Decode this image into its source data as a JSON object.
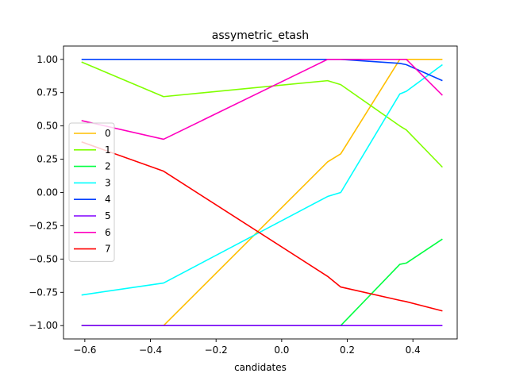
{
  "chart_data": {
    "type": "line",
    "title": "assymetric_etash",
    "xlabel": "candidates",
    "ylabel": "",
    "xlim": [
      -0.665,
      0.535
    ],
    "ylim": [
      -1.1,
      1.1
    ],
    "xticks": [
      -0.6,
      -0.4,
      -0.2,
      0.0,
      0.2,
      0.4
    ],
    "xtick_labels": [
      "−0.6",
      "−0.4",
      "−0.2",
      "0.0",
      "0.2",
      "0.4"
    ],
    "yticks": [
      -1.0,
      -0.75,
      -0.5,
      -0.25,
      0.0,
      0.25,
      0.5,
      0.75,
      1.0
    ],
    "ytick_labels": [
      "−1.00",
      "−0.75",
      "−0.50",
      "−0.25",
      "0.00",
      "0.25",
      "0.50",
      "0.75",
      "1.00"
    ],
    "grid": false,
    "legend_position": "center-left",
    "series": [
      {
        "name": "0",
        "color": "#ffbf00",
        "x": [
          -0.61,
          -0.36,
          0.14,
          0.18,
          0.36,
          0.38,
          0.49
        ],
        "y": [
          -1.0,
          -1.0,
          0.23,
          0.29,
          1.0,
          1.0,
          1.0
        ]
      },
      {
        "name": "1",
        "color": "#80ff00",
        "x": [
          -0.61,
          -0.36,
          0.14,
          0.18,
          0.36,
          0.38,
          0.49
        ],
        "y": [
          0.98,
          0.72,
          0.84,
          0.81,
          0.5,
          0.47,
          0.19
        ]
      },
      {
        "name": "2",
        "color": "#00ff40",
        "x": [
          -0.61,
          -0.36,
          0.14,
          0.18,
          0.36,
          0.38,
          0.49
        ],
        "y": [
          -1.0,
          -1.0,
          -1.0,
          -1.0,
          -0.54,
          -0.53,
          -0.35
        ]
      },
      {
        "name": "3",
        "color": "#00ffff",
        "x": [
          -0.61,
          -0.36,
          0.14,
          0.18,
          0.36,
          0.38,
          0.49
        ],
        "y": [
          -0.77,
          -0.68,
          -0.03,
          0.0,
          0.74,
          0.76,
          0.96
        ]
      },
      {
        "name": "4",
        "color": "#0040ff",
        "x": [
          -0.61,
          -0.36,
          0.14,
          0.18,
          0.36,
          0.38,
          0.49
        ],
        "y": [
          1.0,
          1.0,
          1.0,
          1.0,
          0.97,
          0.96,
          0.84
        ]
      },
      {
        "name": "5",
        "color": "#8000ff",
        "x": [
          -0.61,
          -0.36,
          0.14,
          0.18,
          0.36,
          0.38,
          0.49
        ],
        "y": [
          -1.0,
          -1.0,
          -1.0,
          -1.0,
          -1.0,
          -1.0,
          -1.0
        ]
      },
      {
        "name": "6",
        "color": "#ff00bf",
        "x": [
          -0.61,
          -0.36,
          0.14,
          0.18,
          0.36,
          0.38,
          0.49
        ],
        "y": [
          0.54,
          0.4,
          1.0,
          1.0,
          1.0,
          1.0,
          0.73
        ]
      },
      {
        "name": "7",
        "color": "#ff0000",
        "x": [
          -0.61,
          -0.36,
          0.14,
          0.18,
          0.36,
          0.38,
          0.49
        ],
        "y": [
          0.38,
          0.16,
          -0.63,
          -0.71,
          -0.81,
          -0.82,
          -0.89
        ]
      }
    ]
  }
}
